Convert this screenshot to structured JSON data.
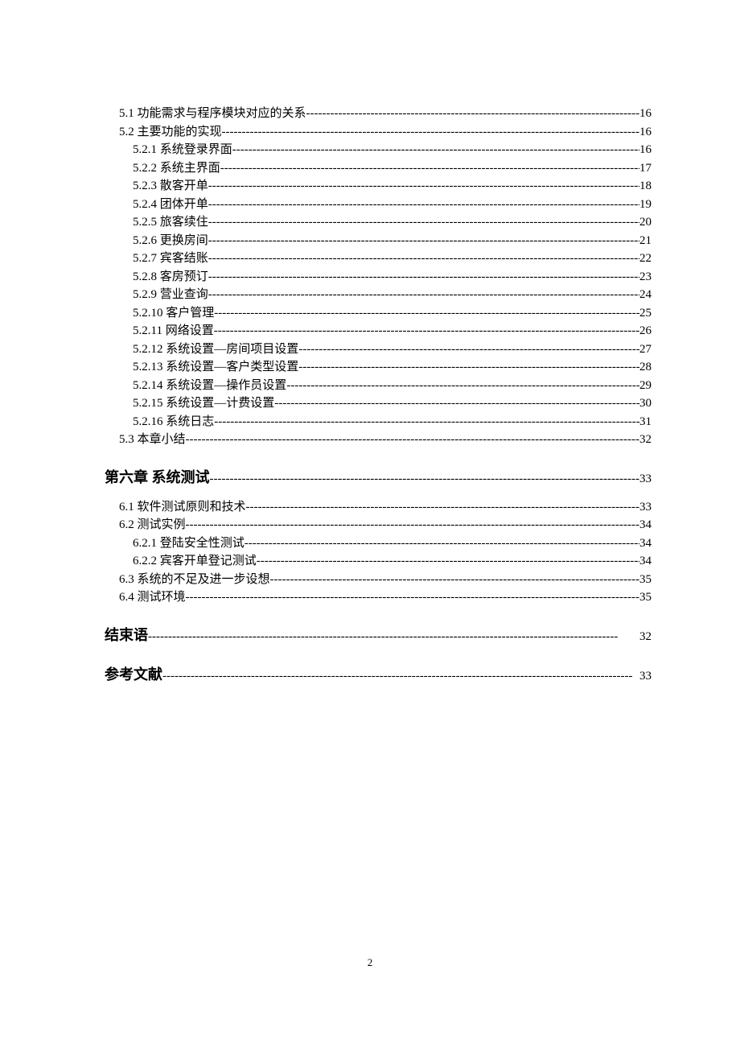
{
  "toc": {
    "entries": [
      {
        "level": 2,
        "label": "5.1 功能需求与程序模块对应的关系",
        "page": "16"
      },
      {
        "level": 2,
        "label": "5.2 主要功能的实现",
        "page": "16"
      },
      {
        "level": 3,
        "label": "5.2.1 系统登录界面 ",
        "page": "16"
      },
      {
        "level": 3,
        "label": "5.2.2 系统主界面 ",
        "page": "17"
      },
      {
        "level": 3,
        "label": "5.2.3 散客开单",
        "page": "18"
      },
      {
        "level": 3,
        "label": "5.2.4 团体开单",
        "page": "19"
      },
      {
        "level": 3,
        "label": "5.2.5 旅客续住",
        "page": "20"
      },
      {
        "level": 3,
        "label": "5.2.6 更换房间",
        "page": "21"
      },
      {
        "level": 3,
        "label": "5.2.7 宾客结账",
        "page": "22"
      },
      {
        "level": 3,
        "label": "5.2.8 客房预订",
        "page": "23"
      },
      {
        "level": 3,
        "label": "5.2.9 营业查询",
        "page": "24"
      },
      {
        "level": 3,
        "label": "5.2.10 客户管理",
        "page": "25"
      },
      {
        "level": 3,
        "label": "5.2.11 网络设置",
        "page": "26"
      },
      {
        "level": 3,
        "label": "5.2.12 系统设置—房间项目设置",
        "page": "27"
      },
      {
        "level": 3,
        "label": "5.2.13 系统设置—客户类型设置",
        "page": "28"
      },
      {
        "level": 3,
        "label": "5.2.14 系统设置—操作员设置",
        "page": "29"
      },
      {
        "level": 3,
        "label": "5.2.15 系统设置—计费设置",
        "page": "30"
      },
      {
        "level": 3,
        "label": "5.2.16 系统日志",
        "page": "31"
      },
      {
        "level": 2,
        "label": "5.3 本章小结",
        "page": "32"
      },
      {
        "level": "chapter",
        "label": "第六章 系统测试 ",
        "page": "33"
      },
      {
        "level": 2,
        "label": "6.1 软件测试原则和技术 ",
        "page": "33"
      },
      {
        "level": 2,
        "label": "6.2 测试实例 ",
        "page": "34"
      },
      {
        "level": 3,
        "label": "6.2.1 登陆安全性测试",
        "page": "34"
      },
      {
        "level": 3,
        "label": "6.2.2 宾客开单登记测试",
        "page": "34"
      },
      {
        "level": 2,
        "label": "6.3 系统的不足及进一步设想 ",
        "page": "35"
      },
      {
        "level": 2,
        "label": "6.4 测试环境 ",
        "page": "35"
      },
      {
        "level": "chapter",
        "label": "结束语 ",
        "page": "32"
      },
      {
        "level": "chapter",
        "label": "参考文献 ",
        "page": "33"
      }
    ]
  },
  "pageNumber": "2"
}
